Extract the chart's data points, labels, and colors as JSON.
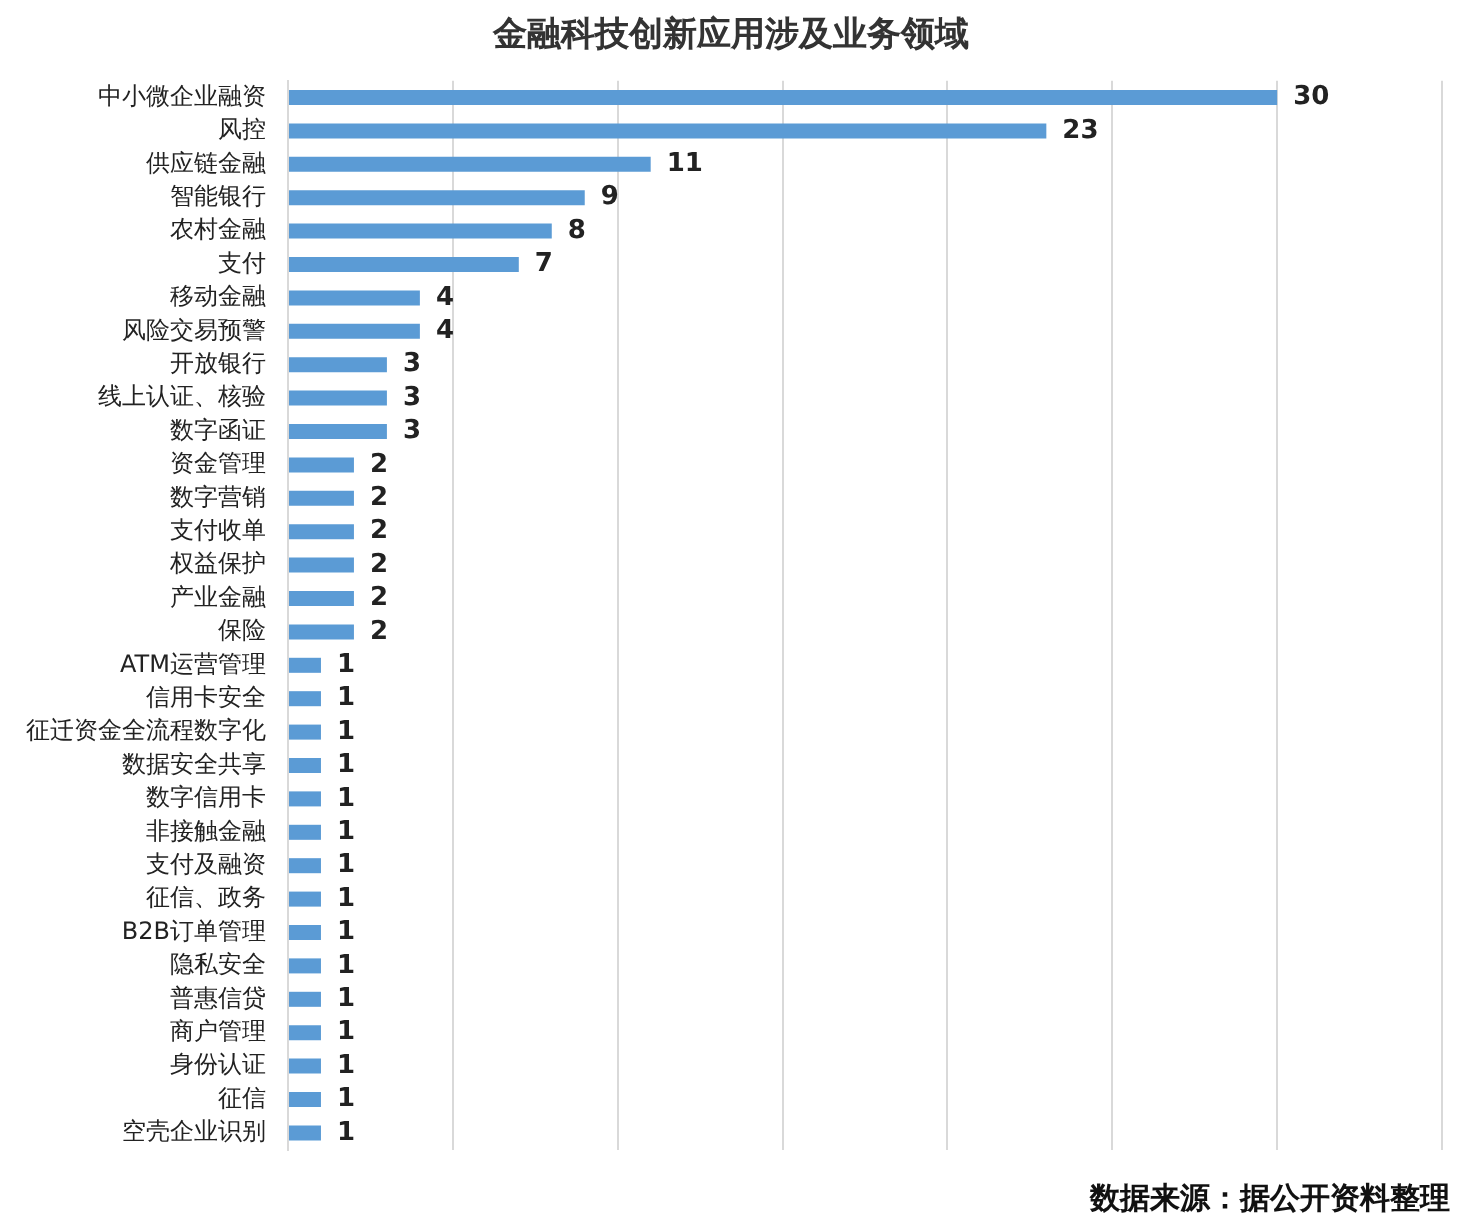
{
  "chart_data": {
    "type": "bar",
    "orientation": "horizontal",
    "title": "金融科技创新应用涉及业务领域",
    "categories": [
      "中小微企业融资",
      "风控",
      "供应链金融",
      "智能银行",
      "农村金融",
      "支付",
      "移动金融",
      "风险交易预警",
      "开放银行",
      "线上认证、核验",
      "数字函证",
      "资金管理",
      "数字营销",
      "支付收单",
      "权益保护",
      "产业金融",
      "保险",
      "ATM运营管理",
      "信用卡安全",
      "征迁资金全流程数字化",
      "数据安全共享",
      "数字信用卡",
      "非接触金融",
      "支付及融资",
      "征信、政务",
      "B2B订单管理",
      "隐私安全",
      "普惠信贷",
      "商户管理",
      "身份认证",
      "征信",
      "空壳企业识别"
    ],
    "values": [
      30,
      23,
      11,
      9,
      8,
      7,
      4,
      4,
      3,
      3,
      3,
      2,
      2,
      2,
      2,
      2,
      2,
      1,
      1,
      1,
      1,
      1,
      1,
      1,
      1,
      1,
      1,
      1,
      1,
      1,
      1,
      1
    ],
    "color": "#5b9bd5",
    "data_labels": true,
    "grid": "x",
    "legend": false,
    "tick_labels": "y",
    "xlim": [
      0,
      35
    ],
    "xticks": [
      {
        "value": 0,
        "label": null
      },
      {
        "value": 5,
        "label": null
      },
      {
        "value": 10,
        "label": null
      },
      {
        "value": 15,
        "label": null
      },
      {
        "value": 20,
        "label": null
      },
      {
        "value": 25,
        "label": null
      },
      {
        "value": 30,
        "label": null
      },
      {
        "value": 35,
        "label": null
      }
    ],
    "annotations": [
      "数据来源：据公开资料整理"
    ]
  }
}
